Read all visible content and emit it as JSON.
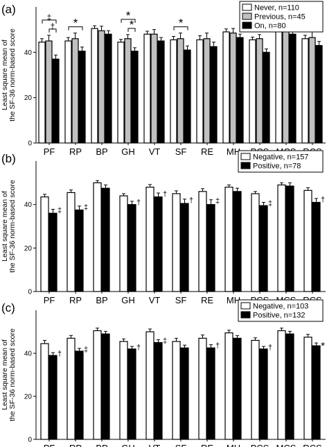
{
  "chart_data": [
    {
      "type": "bar",
      "panel_label": "(a)",
      "ylabel": [
        "Least square mean of",
        "the SF-36 norm-based score"
      ],
      "ylim": [
        0,
        60
      ],
      "yticks": [
        0,
        20,
        40
      ],
      "categories": [
        "PF",
        "RP",
        "BP",
        "GH",
        "VT",
        "SF",
        "RE",
        "MH",
        "PCS",
        "MCS",
        "RCS"
      ],
      "series": [
        {
          "name": "Never, n=110",
          "color": "#ffffff",
          "values": [
            44.5,
            45.0,
            50.5,
            44.5,
            48.0,
            45.5,
            45.5,
            49.0,
            45.5,
            50.0,
            46.0
          ],
          "errors": [
            1.5,
            1.5,
            1.2,
            1.2,
            1.3,
            1.5,
            1.8,
            1.3,
            1.2,
            1.2,
            1.5
          ]
        },
        {
          "name": "Previous, n=45",
          "color": "#c0c0c0",
          "values": [
            45.0,
            46.0,
            49.5,
            46.0,
            48.0,
            46.0,
            46.0,
            48.5,
            46.0,
            49.5,
            46.5
          ],
          "errors": [
            2.5,
            2.5,
            2.0,
            1.8,
            2.0,
            2.5,
            2.5,
            2.0,
            1.8,
            1.8,
            2.5
          ]
        },
        {
          "name": "On, n=80",
          "color": "#000000",
          "values": [
            37.0,
            40.5,
            48.0,
            40.5,
            45.0,
            41.0,
            42.5,
            46.5,
            40.0,
            48.0,
            43.0
          ],
          "errors": [
            1.8,
            1.8,
            1.5,
            1.5,
            1.5,
            1.8,
            2.0,
            1.5,
            1.5,
            1.5,
            1.8
          ]
        }
      ],
      "significance": [
        {
          "category": "PF",
          "from": 0,
          "to": 2,
          "symbol": "‡",
          "level": 0
        },
        {
          "category": "PF",
          "from": 1,
          "to": 2,
          "symbol": "†",
          "level": 1
        },
        {
          "category": "RP",
          "from": 0,
          "to": 2,
          "symbol": "*",
          "level": 1
        },
        {
          "category": "GH",
          "from": 0,
          "to": 2,
          "symbol": "*",
          "level": 0
        },
        {
          "category": "GH",
          "from": 1,
          "to": 2,
          "symbol": "*",
          "level": 1
        },
        {
          "category": "SF",
          "from": 0,
          "to": 2,
          "symbol": "*",
          "level": 1
        },
        {
          "category": "PCS",
          "from": 0,
          "to": 2,
          "symbol": "†",
          "level": 0
        },
        {
          "category": "PCS",
          "from": 1,
          "to": 2,
          "symbol": "*",
          "level": 1
        }
      ],
      "bar_marks": []
    },
    {
      "type": "bar",
      "panel_label": "(b)",
      "ylabel": [
        "Least square mean of",
        "the SF-36 norm-based score"
      ],
      "ylim": [
        0,
        60
      ],
      "yticks": [
        0,
        20,
        40
      ],
      "categories": [
        "PF",
        "RP",
        "BP",
        "GH",
        "VT",
        "SF",
        "RE",
        "MH",
        "PCS",
        "MCS",
        "RCS"
      ],
      "series": [
        {
          "name": "Negative, n=157",
          "color": "#ffffff",
          "values": [
            43.5,
            45.5,
            50.0,
            44.0,
            48.0,
            45.0,
            46.0,
            48.0,
            45.0,
            49.0,
            46.5
          ],
          "errors": [
            1.2,
            1.2,
            1.0,
            1.0,
            1.2,
            1.3,
            1.3,
            1.0,
            1.0,
            1.0,
            1.2
          ]
        },
        {
          "name": "Positive, n=78",
          "color": "#000000",
          "values": [
            36.0,
            37.5,
            47.5,
            40.0,
            43.5,
            40.5,
            40.0,
            46.0,
            39.5,
            48.5,
            41.0
          ],
          "errors": [
            1.8,
            1.8,
            1.5,
            1.5,
            1.8,
            2.0,
            2.2,
            1.5,
            1.5,
            1.5,
            1.8
          ]
        }
      ],
      "significance": [],
      "bar_marks": [
        {
          "category": "PF",
          "series": 1,
          "symbol": "‡"
        },
        {
          "category": "RP",
          "series": 1,
          "symbol": "‡"
        },
        {
          "category": "GH",
          "series": 1,
          "symbol": "†"
        },
        {
          "category": "VT",
          "series": 1,
          "symbol": "†"
        },
        {
          "category": "SF",
          "series": 1,
          "symbol": "†"
        },
        {
          "category": "RE",
          "series": 1,
          "symbol": "‡"
        },
        {
          "category": "PCS",
          "series": 1,
          "symbol": "‡"
        },
        {
          "category": "RCS",
          "series": 1,
          "symbol": "†"
        }
      ]
    },
    {
      "type": "bar",
      "panel_label": "(c)",
      "ylabel": [
        "Least square mean of",
        "the SF-36 norm-based score"
      ],
      "ylim": [
        0,
        60
      ],
      "yticks": [
        0,
        20,
        40
      ],
      "categories": [
        "PF",
        "RP",
        "BP",
        "GH",
        "VT",
        "SF",
        "RE",
        "MH",
        "PCS",
        "MCS",
        "RCS"
      ],
      "series": [
        {
          "name": "Negative, n=103",
          "color": "#ffffff",
          "values": [
            44.5,
            47.0,
            50.5,
            45.5,
            50.0,
            45.5,
            47.0,
            49.5,
            46.0,
            50.5,
            47.5
          ],
          "errors": [
            1.5,
            1.3,
            1.2,
            1.2,
            1.3,
            1.5,
            1.5,
            1.2,
            1.2,
            1.2,
            1.3
          ]
        },
        {
          "name": "Positive, n=132",
          "color": "#000000",
          "values": [
            39.0,
            41.0,
            49.0,
            42.0,
            45.0,
            42.5,
            42.5,
            47.0,
            42.0,
            49.0,
            43.5
          ],
          "errors": [
            1.3,
            1.3,
            1.2,
            1.2,
            1.3,
            1.3,
            1.5,
            1.2,
            1.2,
            1.2,
            1.3
          ]
        }
      ],
      "significance": [],
      "bar_marks": [
        {
          "category": "PF",
          "series": 1,
          "symbol": "†"
        },
        {
          "category": "RP",
          "series": 1,
          "symbol": "‡"
        },
        {
          "category": "GH",
          "series": 1,
          "symbol": "†"
        },
        {
          "category": "VT",
          "series": 1,
          "symbol": "‡"
        },
        {
          "category": "RE",
          "series": 1,
          "symbol": "†"
        },
        {
          "category": "PCS",
          "series": 1,
          "symbol": "†"
        },
        {
          "category": "RCS",
          "series": 1,
          "symbol": "*"
        }
      ]
    }
  ]
}
